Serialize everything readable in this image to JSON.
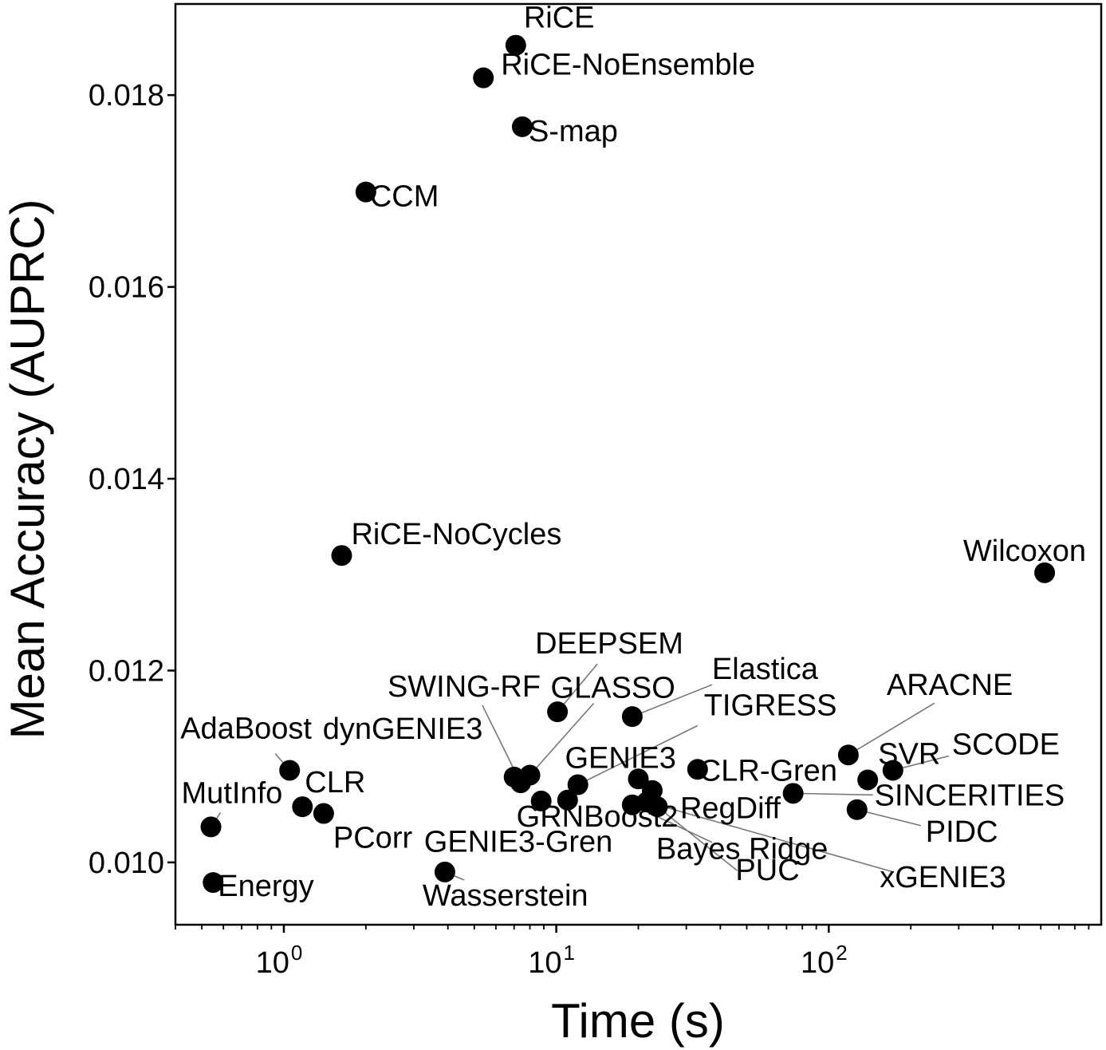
{
  "chart_data": {
    "type": "scatter",
    "title": "",
    "xlabel": "Time (s)",
    "ylabel": "Mean Accuracy (AUPRC)",
    "x_scale": "log",
    "xlim": [
      0.4,
      1000
    ],
    "ylim": [
      0.00935,
      0.01895
    ],
    "x_ticks": [
      1,
      10,
      100
    ],
    "x_tick_labels": [
      [
        "10",
        "0"
      ],
      [
        "10",
        "1"
      ],
      [
        "10",
        "2"
      ]
    ],
    "y_ticks": [
      0.01,
      0.012,
      0.014,
      0.016,
      0.018
    ],
    "y_tick_labels": [
      "0.010",
      "0.012",
      "0.014",
      "0.016",
      "0.018"
    ],
    "grid": false,
    "marker_color": "#000000",
    "points": [
      {
        "name": "RiCE",
        "x": 7.1,
        "y": 0.01852
      },
      {
        "name": "RiCE-NoEnsemble",
        "x": 5.4,
        "y": 0.01818
      },
      {
        "name": "S-map",
        "x": 7.5,
        "y": 0.01767
      },
      {
        "name": "CCM",
        "x": 2.0,
        "y": 0.01699
      },
      {
        "name": "RiCE-NoCycles",
        "x": 1.63,
        "y": 0.0132
      },
      {
        "name": "Wilcoxon",
        "x": 620,
        "y": 0.01302
      },
      {
        "name": "DEEPSEM",
        "x": 10.1,
        "y": 0.01157
      },
      {
        "name": "Elastica",
        "x": 19,
        "y": 0.01152
      },
      {
        "name": "ARACNE",
        "x": 118,
        "y": 0.01112
      },
      {
        "name": "SCODE",
        "x": 172,
        "y": 0.01096
      },
      {
        "name": "CLR-Gren",
        "x": 33,
        "y": 0.01097
      },
      {
        "name": "SVR",
        "x": 139,
        "y": 0.01086
      },
      {
        "name": "AdaBoost",
        "x": 1.05,
        "y": 0.01096
      },
      {
        "name": "dynGENIE3",
        "x": 7.0,
        "y": 0.01089
      },
      {
        "name": "SWING-RF",
        "x": 7.4,
        "y": 0.01083
      },
      {
        "name": "GLASSO",
        "x": 8.0,
        "y": 0.01091
      },
      {
        "name": "GENIE3",
        "x": 20,
        "y": 0.01087
      },
      {
        "name": "TIGRESS",
        "x": 12,
        "y": 0.01081
      },
      {
        "name": "SINCERITIES",
        "x": 74,
        "y": 0.01072
      },
      {
        "name": "RegDiff",
        "x": 22.5,
        "y": 0.01075
      },
      {
        "name": "GRNBoost2",
        "x": 8.8,
        "y": 0.01064
      },
      {
        "name": "GENIE3-Gren",
        "x": 11,
        "y": 0.01065
      },
      {
        "name": "Bayes Ridge",
        "x": 19,
        "y": 0.0106
      },
      {
        "name": "PUC",
        "x": 23.5,
        "y": 0.01058
      },
      {
        "name": "xGENIE3",
        "x": 21.5,
        "y": 0.01063
      },
      {
        "name": "PIDC",
        "x": 127,
        "y": 0.01055
      },
      {
        "name": "CLR",
        "x": 1.17,
        "y": 0.01058
      },
      {
        "name": "PCorr",
        "x": 1.4,
        "y": 0.01051
      },
      {
        "name": "MutInfo",
        "x": 0.54,
        "y": 0.01037
      },
      {
        "name": "Energy",
        "x": 0.55,
        "y": 0.00979
      },
      {
        "name": "Wasserstein",
        "x": 3.9,
        "y": 0.0099
      }
    ]
  }
}
